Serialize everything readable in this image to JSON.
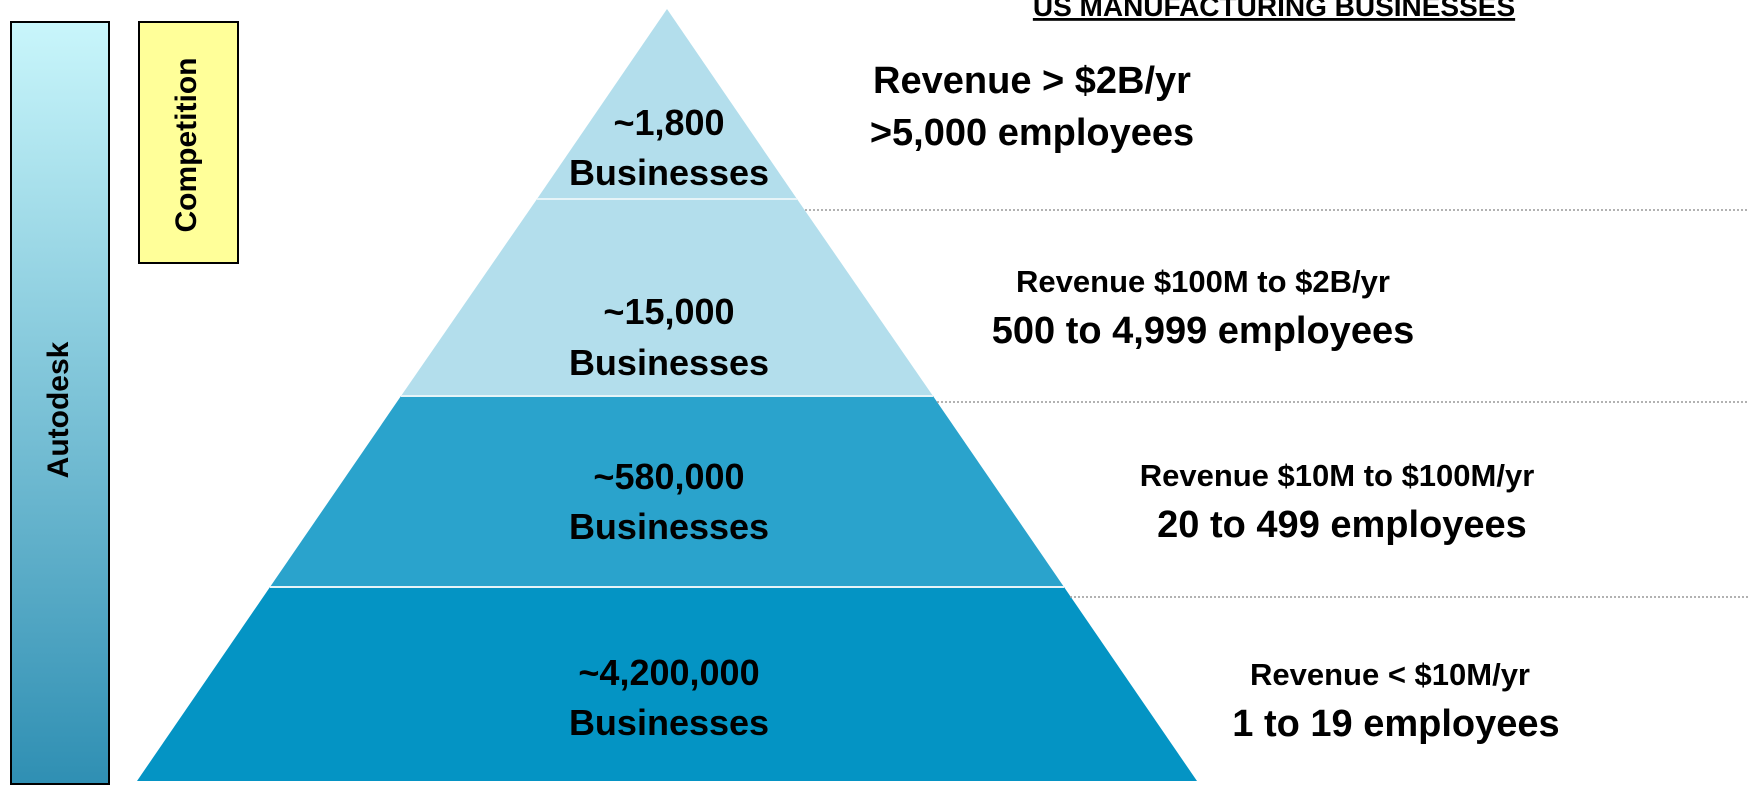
{
  "title": "US MANUFACTURING BUSINESSES",
  "side_labels": {
    "outer": "Autodesk",
    "inner": "Competition"
  },
  "tiers": [
    {
      "count": "~1,800",
      "unit": "Businesses",
      "revenue": "Revenue > $2B/yr",
      "employees": ">5,000 employees"
    },
    {
      "count": "~15,000",
      "unit": "Businesses",
      "revenue": "Revenue $100M to $2B/yr",
      "employees": "500 to 4,999 employees"
    },
    {
      "count": "~580,000",
      "unit": "Businesses",
      "revenue": "Revenue $10M to $100M/yr",
      "employees": "20 to 499 employees"
    },
    {
      "count": "~4,200,000",
      "unit": "Businesses",
      "revenue": "Revenue < $10M/yr",
      "employees": "1 to 19 employees"
    }
  ]
}
